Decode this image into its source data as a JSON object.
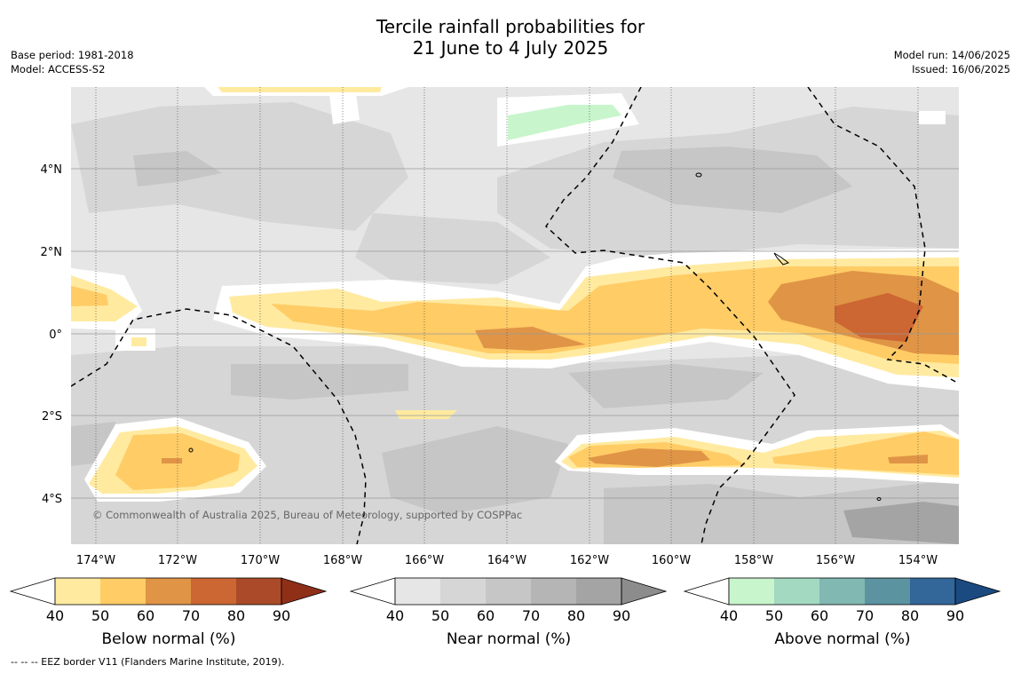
{
  "header": {
    "title_line1": "Tercile rainfall probabilities for",
    "title_line2": "21 June to 4 July 2025",
    "base_period": "Base period: 1981-2018",
    "model": "Model: ACCESS-S2",
    "model_run": "Model run: 14/06/2025",
    "issued": "Issued: 16/06/2025"
  },
  "map": {
    "lon_labels": [
      "174°W",
      "172°W",
      "170°W",
      "168°W",
      "166°W",
      "164°W",
      "162°W",
      "160°W",
      "158°W",
      "156°W",
      "154°W"
    ],
    "lat_labels": [
      "4°N",
      "2°N",
      "0°",
      "2°S",
      "4°S"
    ],
    "copyright": "© Commonwealth of Australia 2025, Bureau of Meteorology, supported by COSPPac",
    "colors": {
      "background_near_normal": "#e6e6e6"
    }
  },
  "colorbars": [
    {
      "label": "Below normal (%)",
      "ticks": [
        "40",
        "50",
        "60",
        "70",
        "80",
        "90"
      ],
      "colors": [
        "#ffffff",
        "#ffeaa0",
        "#ffcc66",
        "#e09446",
        "#cc6633",
        "#aa4a28",
        "#8f2f18"
      ]
    },
    {
      "label": "Near normal (%)",
      "ticks": [
        "40",
        "50",
        "60",
        "70",
        "80",
        "90"
      ],
      "colors": [
        "#ffffff",
        "#e6e6e6",
        "#d6d6d6",
        "#c6c6c6",
        "#b5b5b5",
        "#a4a4a4",
        "#8c8c8c"
      ]
    },
    {
      "label": "Above normal (%)",
      "ticks": [
        "40",
        "50",
        "60",
        "70",
        "80",
        "90"
      ],
      "colors": [
        "#ffffff",
        "#c8f5cc",
        "#a3d9c0",
        "#82b8b2",
        "#5c93a0",
        "#336699",
        "#1a4a80"
      ]
    }
  ],
  "footer": {
    "eez_note": "--  --  -- EEZ border V11 (Flanders Marine Institute, 2019)."
  }
}
